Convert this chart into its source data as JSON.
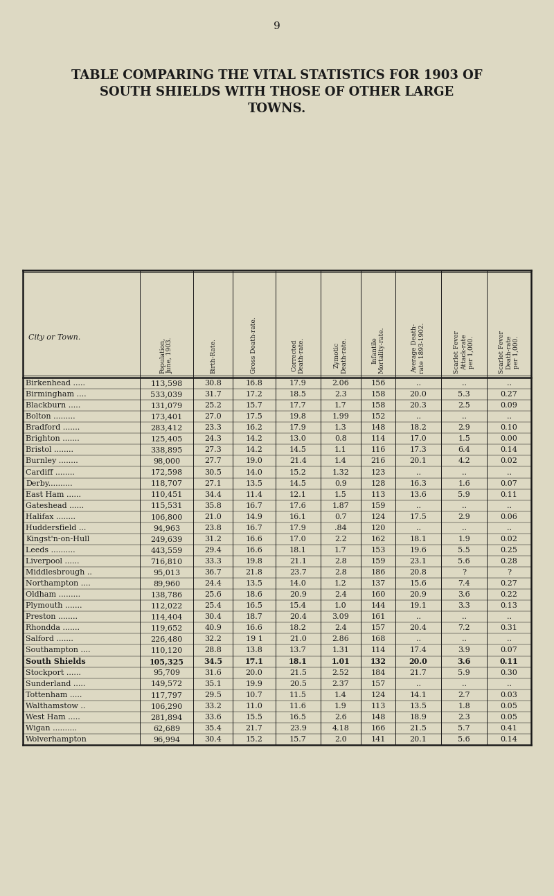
{
  "page_number": "9",
  "title_lines": [
    "TABLE COMPARING THE VITAL STATISTICS FOR 1903 OF",
    "SOUTH SHIELDS WITH THOSE OF OTHER LARGE",
    "TOWNS."
  ],
  "col_headers": [
    "City or Town.",
    "Population,\nJune, 1903.",
    "Birth-Rate.",
    "Gross Death-rate.",
    "Corrected\nDeath-rate.",
    "Zymotic\nDeath-rate.",
    "Infantile\nMortality-rate.",
    "Average Death-\nrate 1893-1902.",
    "Scarlet Fever\nAttack-rate\nper 1,000.",
    "Scarlet Fever\nDeath-rate\nper 1,000."
  ],
  "rows": [
    [
      "Birkenhead .....",
      "113,598",
      "30.8",
      "16.8",
      "17.9",
      "2.06",
      "156",
      "..",
      "..",
      ".."
    ],
    [
      "Birmingham ....",
      "533,039",
      "31.7",
      "17.2",
      "18.5",
      "2.3",
      "158",
      "20.0",
      "5.3",
      "0.27"
    ],
    [
      "Blackburn .....",
      "131,079",
      "25.2",
      "15.7",
      "17.7",
      "1.7",
      "158",
      "20.3",
      "2.5",
      "0.09"
    ],
    [
      "Bolton .........",
      "173,401",
      "27.0",
      "17.5",
      "19.8",
      "1.99",
      "152",
      "..",
      "..",
      ".."
    ],
    [
      "Bradford .......",
      "283,412",
      "23.3",
      "16.2",
      "17.9",
      "1.3",
      "148",
      "18.2",
      "2.9",
      "0.10"
    ],
    [
      "Brighton .......",
      "125,405",
      "24.3",
      "14.2",
      "13.0",
      "0.8",
      "114",
      "17.0",
      "1.5",
      "0.00"
    ],
    [
      "Bristol ........",
      "338,895",
      "27.3",
      "14.2",
      "14.5",
      "1.1",
      "116",
      "17.3",
      "6.4",
      "0.14"
    ],
    [
      "Burnley ........",
      "98,000",
      "27.7",
      "19.0",
      "21.4",
      "1.4",
      "216",
      "20.1",
      "4.2",
      "0.02"
    ],
    [
      "Cardiff ........",
      "172,598",
      "30.5",
      "14.0",
      "15.2",
      "1.32",
      "123",
      "..",
      "..",
      ".."
    ],
    [
      "Derby..........",
      "118,707",
      "27.1",
      "13.5",
      "14.5",
      "0.9",
      "128",
      "16.3",
      "1.6",
      "0.07"
    ],
    [
      "East Ham ......",
      "110,451",
      "34.4",
      "11.4",
      "12.1",
      "1.5",
      "113",
      "13.6",
      "5.9",
      "0.11"
    ],
    [
      "Gateshead ......",
      "115,531",
      "35.8",
      "16.7",
      "17.6",
      "1.87",
      "159",
      "..",
      "..",
      ".."
    ],
    [
      "Halifax ........",
      "106,800",
      "21.0",
      "14.9",
      "16.1",
      "0.7",
      "124",
      "17.5",
      "2.9",
      "0.06"
    ],
    [
      "Huddersfield ...",
      "94,963",
      "23.8",
      "16.7",
      "17.9",
      ".84",
      "120",
      "..",
      "..",
      ".."
    ],
    [
      "Kingst'n-on-Hull",
      "249,639",
      "31.2",
      "16.6",
      "17.0",
      "2.2",
      "162",
      "18.1",
      "1.9",
      "0.02"
    ],
    [
      "Leeds ..........",
      "443,559",
      "29.4",
      "16.6",
      "18.1",
      "1.7",
      "153",
      "19.6",
      "5.5",
      "0.25"
    ],
    [
      "Liverpool ......",
      "716,810",
      "33.3",
      "19.8",
      "21.1",
      "2.8",
      "159",
      "23.1",
      "5.6",
      "0.28"
    ],
    [
      "Middlesbrough ..",
      "95,013",
      "36.7",
      "21.8",
      "23.7",
      "2.8",
      "186",
      "20.8",
      "?",
      "?"
    ],
    [
      "Northampton ....",
      "89,960",
      "24.4",
      "13.5",
      "14.0",
      "1.2",
      "137",
      "15.6",
      "7.4",
      "0.27"
    ],
    [
      "Oldham .........",
      "138,786",
      "25.6",
      "18.6",
      "20.9",
      "2.4",
      "160",
      "20.9",
      "3.6",
      "0.22"
    ],
    [
      "Plymouth .......",
      "112,022",
      "25.4",
      "16.5",
      "15.4",
      "1.0",
      "144",
      "19.1",
      "3.3",
      "0.13"
    ],
    [
      "Preston ........",
      "114,404",
      "30.4",
      "18.7",
      "20.4",
      "3.09",
      "161",
      "..",
      "..",
      ".."
    ],
    [
      "Rhondda .......",
      "119,652",
      "40.9",
      "16.6",
      "18.2",
      "2.4",
      "157",
      "20.4",
      "7.2",
      "0.31"
    ],
    [
      "Salford .......",
      "226,480",
      "32.2",
      "19 1",
      "21.0",
      "2.86",
      "168",
      "..",
      "..",
      ".."
    ],
    [
      "Southampton ....",
      "110,120",
      "28.8",
      "13.8",
      "13.7",
      "1.31",
      "114",
      "17.4",
      "3.9",
      "0.07"
    ],
    [
      "South Shields",
      "105,325",
      "34.5",
      "17.1",
      "18.1",
      "1.01",
      "132",
      "20.0",
      "3.6",
      "0.11"
    ],
    [
      "Stockport ......",
      "95,709",
      "31.6",
      "20.0",
      "21.5",
      "2.52",
      "184",
      "21.7",
      "5.9",
      "0.30"
    ],
    [
      "Sunderland .....",
      "149,572",
      "35.1",
      "19.9",
      "20.5",
      "2.37",
      "157",
      "..",
      "..",
      ".."
    ],
    [
      "Tottenham .....",
      "117,797",
      "29.5",
      "10.7",
      "11.5",
      "1.4",
      "124",
      "14.1",
      "2.7",
      "0.03"
    ],
    [
      "Walthamstow ..",
      "106,290",
      "33.2",
      "11.0",
      "11.6",
      "1.9",
      "113",
      "13.5",
      "1.8",
      "0.05"
    ],
    [
      "West Ham .....",
      "281,894",
      "33.6",
      "15.5",
      "16.5",
      "2.6",
      "148",
      "18.9",
      "2.3",
      "0.05"
    ],
    [
      "Wigan ..........",
      "62,689",
      "35.4",
      "21.7",
      "23.9",
      "4.18",
      "166",
      "21.5",
      "5.7",
      "0.41"
    ],
    [
      "Wolverhampton",
      "96,994",
      "30.4",
      "15.2",
      "15.7",
      "2.0",
      "141",
      "20.1",
      "5.6",
      "0.14"
    ]
  ],
  "south_shields_row": 25,
  "bg_color": "#ddd9c3",
  "text_color": "#1a1a1a"
}
